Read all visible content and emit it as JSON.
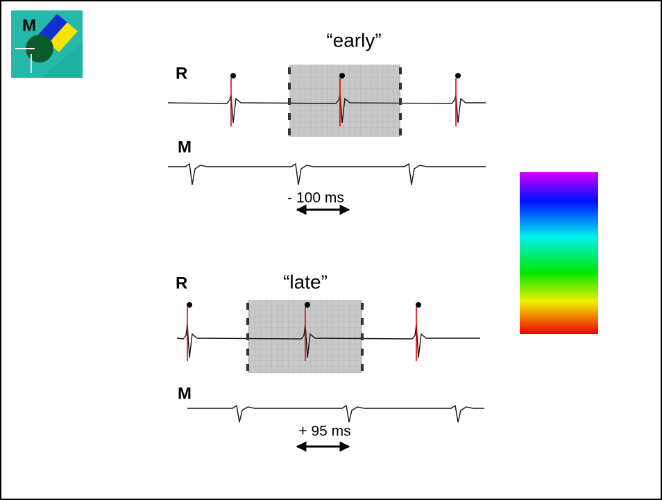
{
  "logo": {
    "label": "M"
  },
  "panels": [
    {
      "title": "“early”",
      "traces": [
        {
          "label": "R"
        },
        {
          "label": "M"
        }
      ],
      "offset": "- 100 ms"
    },
    {
      "title": "“late”",
      "traces": [
        {
          "label": "R"
        },
        {
          "label": "M"
        }
      ],
      "offset": "+ 95 ms"
    }
  ]
}
